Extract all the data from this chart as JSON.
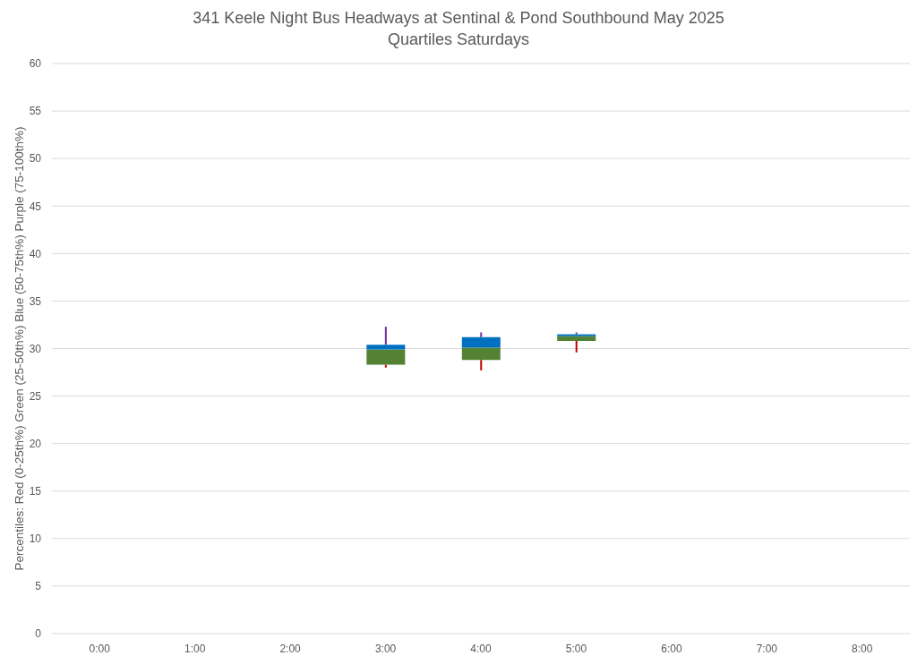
{
  "chart_data": {
    "type": "box",
    "title": "341 Keele Night Bus Headways at Sentinal & Pond Southbound May 2025",
    "subtitle": "Quartiles Saturdays",
    "ylabel": "Percentiles:  Red (0-25th%)  Green (25-50th%)  Blue (50-75th%)  Purple (75-100th%)",
    "categories": [
      "0:00",
      "1:00",
      "2:00",
      "3:00",
      "4:00",
      "5:00",
      "6:00",
      "7:00",
      "8:00"
    ],
    "boxes": [
      null,
      null,
      null,
      {
        "low": 28.0,
        "q1": 28.3,
        "median": 29.9,
        "q3": 30.4,
        "high": 32.3
      },
      {
        "low": 27.7,
        "q1": 28.8,
        "median": 30.1,
        "q3": 31.2,
        "high": 31.7
      },
      {
        "low": 29.6,
        "q1": 30.8,
        "median": 31.3,
        "q3": 31.5,
        "high": 31.7
      },
      null,
      null,
      null
    ],
    "color": "#548235",
    "ylim": [
      0,
      60
    ],
    "yticks": [
      0,
      5,
      10,
      15,
      20,
      25,
      30,
      35,
      40,
      45,
      50,
      55,
      60
    ],
    "grid": "y"
  }
}
